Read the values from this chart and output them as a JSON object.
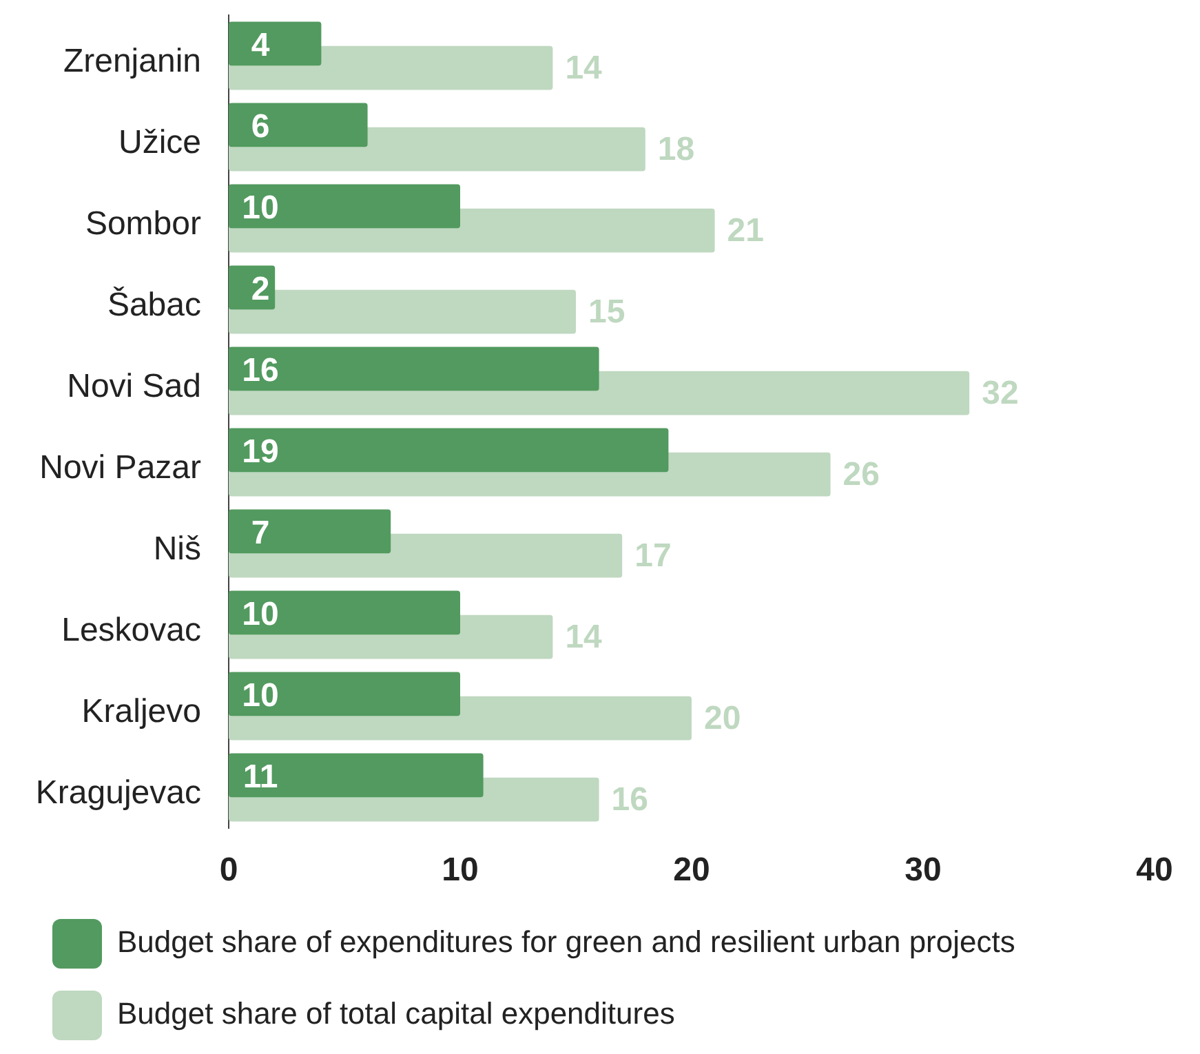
{
  "chart_data": {
    "type": "bar",
    "orientation": "horizontal",
    "categories": [
      "Zrenjanin",
      "Užice",
      "Sombor",
      "Šabac",
      "Novi Sad",
      "Novi Pazar",
      "Niš",
      "Leskovac",
      "Kraljevo",
      "Kragujevac"
    ],
    "series": [
      {
        "name": "Budget share of expenditures for green and resilient urban projects",
        "color": "#529a5f",
        "values": [
          4,
          6,
          10,
          2,
          16,
          19,
          7,
          10,
          10,
          11
        ]
      },
      {
        "name": "Budget share of total capital expenditures",
        "color": "#bfd8c0",
        "values": [
          14,
          18,
          21,
          15,
          32,
          26,
          17,
          14,
          20,
          16
        ]
      }
    ],
    "xlim": [
      0,
      40
    ],
    "xticks": [
      0,
      10,
      20,
      30,
      40
    ],
    "data_labels": true,
    "legend": "bottom left",
    "grid": false
  }
}
